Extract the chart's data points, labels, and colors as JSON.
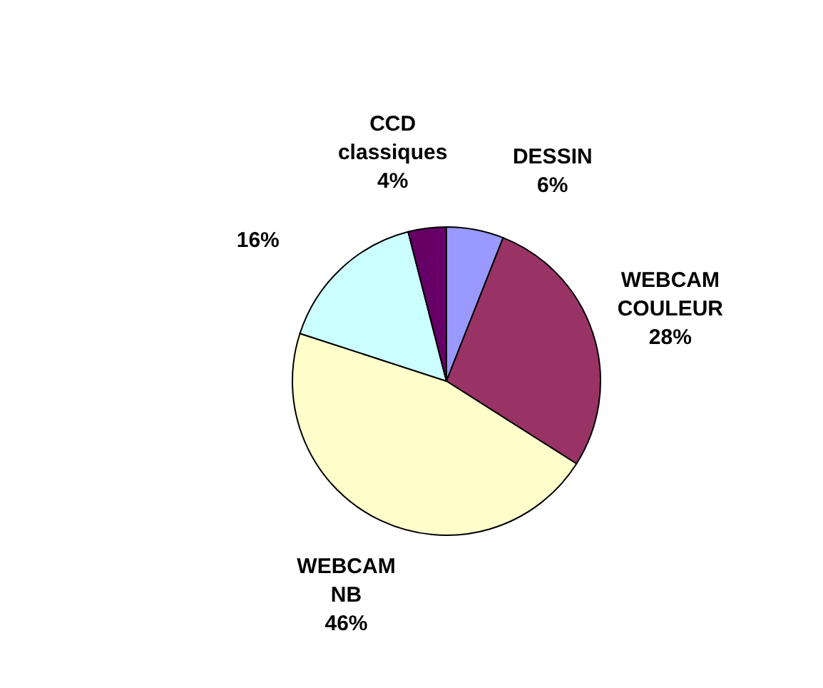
{
  "chart_data": {
    "type": "pie",
    "categories": [
      "DESSIN",
      "WEBCAM COULEUR",
      "WEBCAM NB",
      null,
      "CCD classiques"
    ],
    "values": [
      6,
      28,
      46,
      16,
      4
    ],
    "colors": [
      "#9999ff",
      "#993366",
      "#ffffcc",
      "#ccffff",
      "#660066"
    ],
    "value_labels": [
      "6%",
      "28%",
      "46%",
      "16%",
      "4%"
    ]
  }
}
